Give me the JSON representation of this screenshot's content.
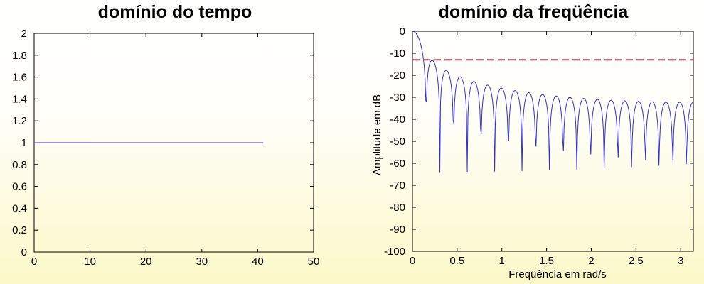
{
  "chart_data": [
    {
      "type": "line",
      "title": "domínio do tempo",
      "xlabel": "",
      "ylabel": "",
      "xlim": [
        0,
        50
      ],
      "ylim": [
        0,
        2
      ],
      "xticks": [
        "0",
        "10",
        "20",
        "30",
        "40",
        "50"
      ],
      "yticks": [
        "0",
        "0.2",
        "0.4",
        "0.6",
        "0.8",
        "1",
        "1.2",
        "1.4",
        "1.6",
        "1.8",
        "2"
      ],
      "grid": false,
      "series": [
        {
          "color": "#3333cc",
          "x": [
            0,
            41
          ],
          "y": [
            1,
            1
          ]
        }
      ]
    },
    {
      "type": "line",
      "title": "domínio da freqüência",
      "xlabel": "Freqüência em rad/s",
      "ylabel": "Amplitude em dB",
      "xlim": [
        0,
        3.14159
      ],
      "ylim": [
        -100,
        0
      ],
      "xticks": [
        "0",
        "0.5",
        "1",
        "1.5",
        "2",
        "2.5",
        "3"
      ],
      "yticks": [
        "-100",
        "-90",
        "-80",
        "-70",
        "-60",
        "-50",
        "-40",
        "-30",
        "-20",
        "-10",
        "0"
      ],
      "grid": false,
      "series": [
        {
          "color": "#3333cc",
          "kind": "rectangular window N=41, magnitude in dB"
        },
        {
          "color": "#b04060",
          "dashed": true,
          "x": [
            0,
            3.14159
          ],
          "y": [
            -13,
            -13
          ]
        }
      ]
    }
  ]
}
